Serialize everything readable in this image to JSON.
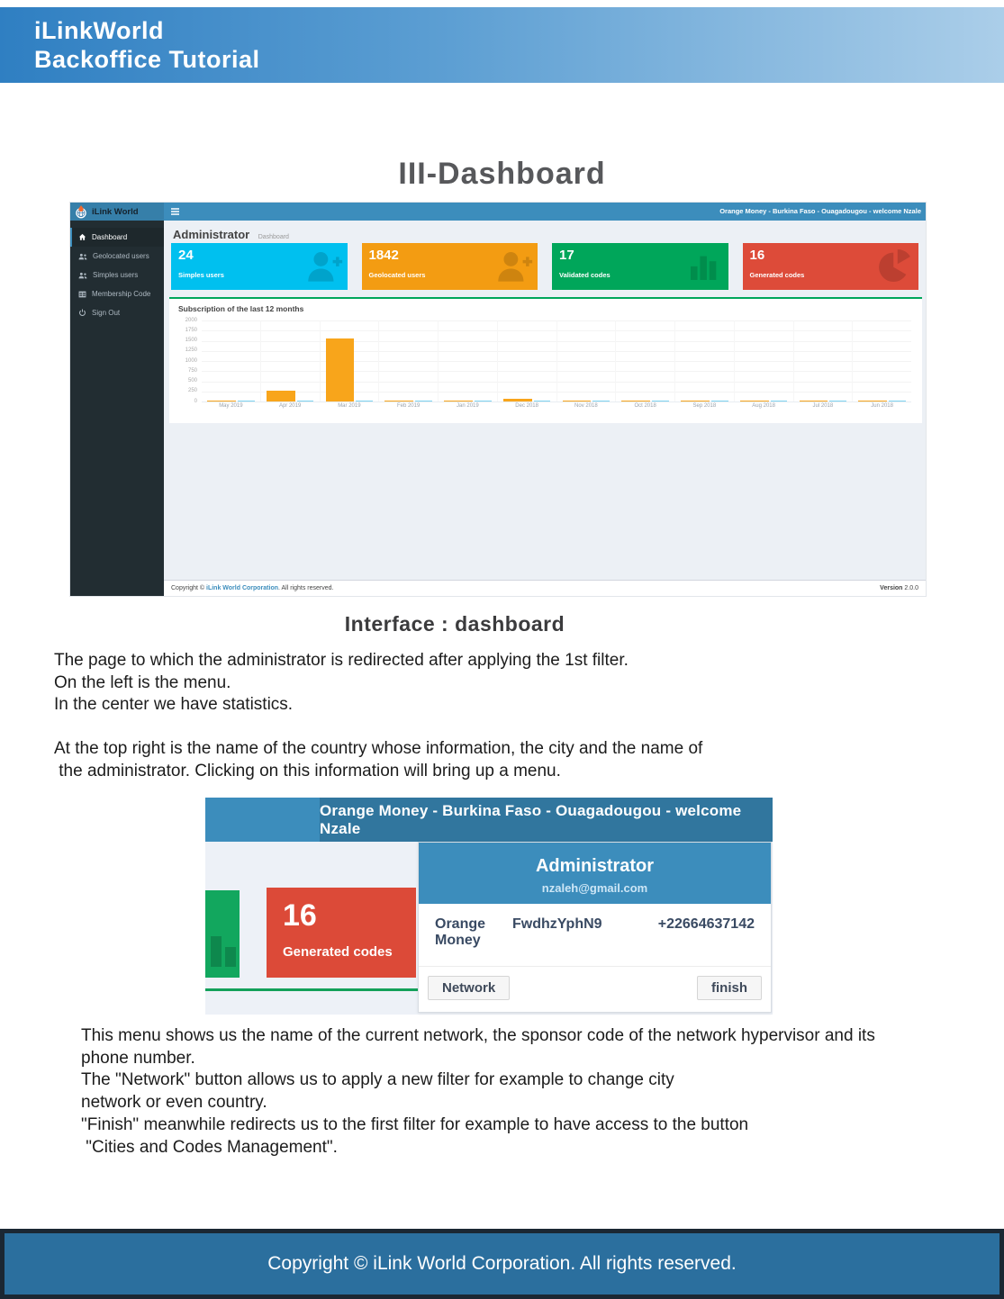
{
  "banner": {
    "line1": "iLinkWorld",
    "line2": "Backoffice Tutorial"
  },
  "section_title": "III-Dashboard",
  "dashboard": {
    "brand": "iLink World",
    "user_info": "Orange Money - Burkina Faso - Ouagadougou - welcome Nzale",
    "sidebar": {
      "items": [
        {
          "label": "Dashboard",
          "icon": "home-icon",
          "active": true
        },
        {
          "label": "Geolocated users",
          "icon": "users-icon"
        },
        {
          "label": "Simples users",
          "icon": "users-icon"
        },
        {
          "label": "Membership Code",
          "icon": "table-icon"
        },
        {
          "label": "Sign Out",
          "icon": "power-icon"
        }
      ]
    },
    "content_header": {
      "title": "Administrator",
      "breadcrumb": "Dashboard"
    },
    "cards": [
      {
        "value": "24",
        "label": "Simples users",
        "color": "#00c0ef",
        "icon": "user-plus-icon"
      },
      {
        "value": "1842",
        "label": "Geolocated users",
        "color": "#f39c12",
        "icon": "user-plus-icon"
      },
      {
        "value": "17",
        "label": "Validated codes",
        "color": "#00a65a",
        "icon": "bar-chart-icon"
      },
      {
        "value": "16",
        "label": "Generated codes",
        "color": "#dd4b39",
        "icon": "pie-chart-icon"
      }
    ],
    "chart_title": "Subscription of the last 12 months",
    "footer": {
      "copyright_prefix": "Copyright © ",
      "company": "iLink World Corporation",
      "copyright_suffix": ". All rights reserved.",
      "version_label": "Version",
      "version_value": "2.0.0"
    }
  },
  "chart_data": {
    "type": "bar",
    "title": "Subscription of the last 12 months",
    "categories": [
      "May 2019",
      "Apr 2019",
      "Mar 2019",
      "Feb 2019",
      "Jan 2019",
      "Dec 2018",
      "Nov 2018",
      "Oct 2018",
      "Sep 2018",
      "Aug 2018",
      "Jul 2018",
      "Jun 2018"
    ],
    "series": [
      {
        "name": "subscriptions-orange",
        "color": "#f8a51b",
        "values": [
          15,
          270,
          1550,
          25,
          10,
          70,
          18,
          12,
          15,
          12,
          12,
          12
        ]
      },
      {
        "name": "subscriptions-blue",
        "color": "#7ed3f0",
        "values": [
          12,
          15,
          28,
          18,
          15,
          22,
          15,
          12,
          15,
          12,
          15,
          18
        ]
      }
    ],
    "xlabel": "",
    "ylabel": "",
    "yticks": [
      0,
      250,
      500,
      750,
      1000,
      1250,
      1500,
      1750,
      2000
    ],
    "ylim": [
      0,
      2000
    ],
    "grid": true,
    "legend": "none"
  },
  "caption": "Interface : dashboard",
  "paragraph1": [
    "The page to which the administrator is redirected after applying the 1st filter.",
    "On the left is the menu.",
    "In the center we have statistics."
  ],
  "paragraph2": [
    "At the top right is the name of the country whose information, the city and the name of",
    " the administrator. Clicking on this information will bring up a menu."
  ],
  "popup": {
    "user_info": "Orange Money - Burkina Faso - Ouagadougou - welcome Nzale",
    "card": {
      "value": "16",
      "label": "Generated codes",
      "color": "#dc4a38"
    },
    "menu": {
      "title": "Administrator",
      "email": "nzaleh@gmail.com",
      "network_name": "Orange Money",
      "sponsor_code": "FwdhzYphN9",
      "phone": "+22664637142",
      "network_button": "Network",
      "finish_button": "finish"
    }
  },
  "paragraph3": [
    "This menu shows us the name of the current network, the sponsor code of the network hypervisor and its",
    "phone number.",
    "The \"Network\" button allows us to apply a new filter for example to change city",
    "network or even country.",
    "\"Finish\" meanwhile redirects us to the first filter for example to have access to the button",
    " \"Cities and Codes Management\"."
  ],
  "page_footer": "Copyright © iLink World Corporation. All rights reserved."
}
